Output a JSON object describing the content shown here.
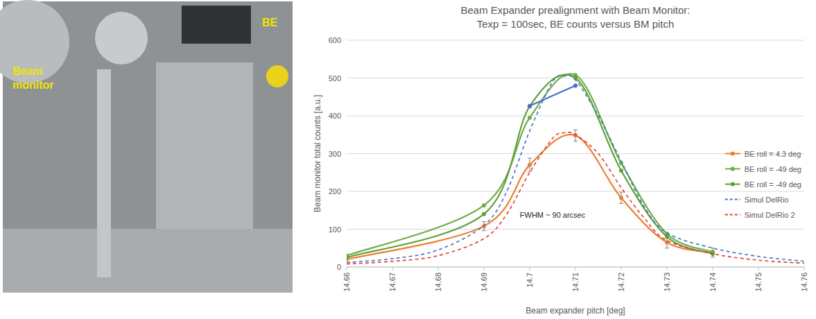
{
  "photo": {
    "labels": [
      "Beam\nmonitor",
      "BE"
    ]
  },
  "chart_data": {
    "type": "line",
    "title": "Beam Expander prealignment with Beam Monitor:\nTexp = 100sec, BE counts versus BM pitch",
    "x_label": "Beam expander pitch [deg]",
    "y_label": "Beam monitor total counts [a.u.]",
    "annotation": {
      "text": "FWHM ~ 90 arcsec",
      "x": 14.705,
      "y": 130
    },
    "xlim": [
      14.66,
      14.76
    ],
    "xticks": [
      14.66,
      14.67,
      14.68,
      14.69,
      {
        "value": 14.7,
        "label": "14.7"
      },
      14.71,
      14.72,
      14.73,
      14.74,
      14.75,
      14.76
    ],
    "ylim": [
      0,
      600
    ],
    "yticks": [
      0,
      100,
      200,
      300,
      400,
      500,
      600
    ],
    "grid": true,
    "legend": "right",
    "series": [
      {
        "name": "BE roll = 4.3 deg",
        "color": "#ed7d31",
        "marker": "circle",
        "line_style": "solid",
        "x": [
          14.66,
          14.69,
          14.7,
          14.71,
          14.72,
          14.73,
          14.74
        ],
        "values": [
          20,
          108,
          270,
          348,
          183,
          65,
          38
        ],
        "errors": [
          8,
          12,
          18,
          15,
          15,
          15,
          12
        ]
      },
      {
        "name": "BE roll = -49 deg",
        "color": "#70ad47",
        "marker": "circle",
        "line_style": "solid",
        "x": [
          14.66,
          14.69,
          14.7,
          14.71,
          14.72,
          14.73,
          14.74
        ],
        "values": [
          30,
          163,
          395,
          508,
          275,
          88,
          40
        ]
      },
      {
        "name": "BE roll = -49 deg",
        "color": "#5fa03a",
        "marker": "circle",
        "line_style": "solid",
        "x": [
          14.66,
          14.69,
          14.7,
          14.71,
          14.72,
          14.73,
          14.74
        ],
        "values": [
          25,
          140,
          425,
          500,
          255,
          80,
          35
        ]
      },
      {
        "color": "#4472c4",
        "marker": "circle",
        "line_style": "solid",
        "x": [
          14.7,
          14.71
        ],
        "values": [
          426,
          480
        ]
      },
      {
        "name": "Simul DelRio",
        "color": "#4472c4",
        "marker": "none",
        "line_style": "dashed",
        "x": [
          14.66,
          14.67,
          14.68,
          14.69,
          14.695,
          14.7,
          14.705,
          14.7075,
          14.71,
          14.715,
          14.72,
          14.725,
          14.73,
          14.74,
          14.75,
          14.76
        ],
        "values": [
          12,
          22,
          45,
          110,
          200,
          360,
          490,
          505,
          495,
          400,
          280,
          160,
          90,
          50,
          28,
          15
        ]
      },
      {
        "name": "Simul DelRio 2",
        "color": "#e03c31",
        "marker": "none",
        "line_style": "dashed",
        "x": [
          14.66,
          14.67,
          14.68,
          14.69,
          14.695,
          14.7,
          14.705,
          14.7075,
          14.71,
          14.715,
          14.72,
          14.725,
          14.73,
          14.74,
          14.75,
          14.76
        ],
        "values": [
          8,
          15,
          30,
          75,
          140,
          250,
          340,
          355,
          350,
          300,
          210,
          130,
          70,
          35,
          18,
          10
        ]
      }
    ]
  }
}
